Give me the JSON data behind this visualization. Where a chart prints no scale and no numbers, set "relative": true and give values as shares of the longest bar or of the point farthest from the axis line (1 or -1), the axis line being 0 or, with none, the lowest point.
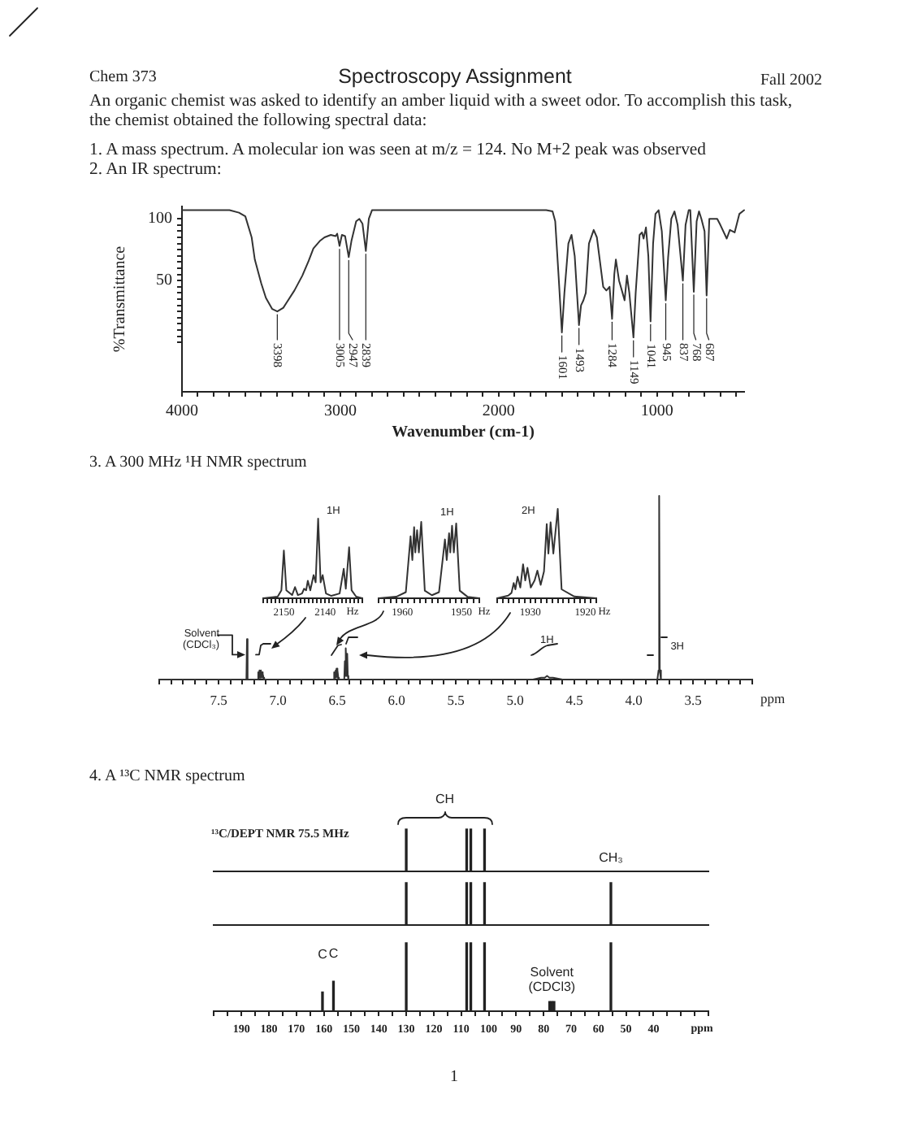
{
  "chart_data": [
    {
      "type": "line",
      "title": "Spectroscopy Assignment",
      "annotations": [
        "Chem 373",
        "Fall 2002",
        "An organic chemist was asked to identify an amber liquid with a sweet odor. To accomplish this task, the chemist obtained the following spectral data:",
        "1. A mass spectrum. A molecular ion was seen at m/z = 124. No M+2 peak was observed",
        "2. An IR spectrum:",
        {
          "text": "3398",
          "x": 3398,
          "y": 25
        },
        {
          "text": "3005",
          "x": 3005,
          "y": 78
        },
        {
          "text": "2947",
          "x": 2947,
          "y": 69
        },
        {
          "text": "2839",
          "x": 2839,
          "y": 74
        },
        {
          "text": "1601",
          "x": 1601,
          "y": 8
        },
        {
          "text": "1493",
          "x": 1493,
          "y": 14
        },
        {
          "text": "1284",
          "x": 1284,
          "y": 19
        },
        {
          "text": "1149",
          "x": 1149,
          "y": 4
        },
        {
          "text": "1041",
          "x": 1041,
          "y": 17
        },
        {
          "text": "945",
          "x": 945,
          "y": 34
        },
        {
          "text": "837",
          "x": 837,
          "y": 50
        },
        {
          "text": "768",
          "x": 768,
          "y": 41
        },
        {
          "text": "687",
          "x": 687,
          "y": 38
        }
      ],
      "xlabel": "Wavenumber (cm-1)",
      "ylabel": "%Transmittance",
      "xlim": [
        4000,
        450
      ],
      "xticks": [
        4000,
        3000,
        2000,
        1000,
        {
          "value": 3900,
          "label": null
        },
        {
          "value": 3800,
          "label": null
        },
        {
          "value": 3700,
          "label": null
        },
        {
          "value": 3600,
          "label": null
        },
        {
          "value": 3500,
          "label": null
        },
        {
          "value": 3400,
          "label": null
        },
        {
          "value": 3300,
          "label": null
        },
        {
          "value": 3200,
          "label": null
        },
        {
          "value": 3100,
          "label": null
        },
        {
          "value": 2900,
          "label": null
        },
        {
          "value": 2800,
          "label": null
        },
        {
          "value": 2700,
          "label": null
        },
        {
          "value": 2600,
          "label": null
        },
        {
          "value": 2500,
          "label": null
        },
        {
          "value": 2400,
          "label": null
        },
        {
          "value": 2300,
          "label": null
        },
        {
          "value": 2200,
          "label": null
        },
        {
          "value": 2100,
          "label": null
        },
        {
          "value": 1900,
          "label": null
        },
        {
          "value": 1800,
          "label": null
        },
        {
          "value": 1700,
          "label": null
        },
        {
          "value": 1600,
          "label": null
        },
        {
          "value": 1500,
          "label": null
        },
        {
          "value": 1400,
          "label": null
        },
        {
          "value": 1300,
          "label": null
        },
        {
          "value": 1200,
          "label": null
        },
        {
          "value": 1100,
          "label": null
        },
        {
          "value": 900,
          "label": null
        },
        {
          "value": 800,
          "label": null
        },
        {
          "value": 700,
          "label": null
        },
        {
          "value": 600,
          "label": null
        },
        {
          "value": 500,
          "label": null
        }
      ],
      "ylim": [
        -40,
        110
      ],
      "yticks": [
        100,
        50,
        {
          "value": 0,
          "label": null
        },
        {
          "value": 5,
          "label": null
        },
        {
          "value": 10,
          "label": null
        },
        {
          "value": 15,
          "label": null
        },
        {
          "value": 20,
          "label": null
        },
        {
          "value": 25,
          "label": null
        },
        {
          "value": 30,
          "label": null
        },
        {
          "value": 35,
          "label": null
        },
        {
          "value": 40,
          "label": null
        },
        {
          "value": 45,
          "label": null
        },
        {
          "value": 55,
          "label": null
        },
        {
          "value": 60,
          "label": null
        },
        {
          "value": 65,
          "label": null
        },
        {
          "value": 70,
          "label": null
        },
        {
          "value": 75,
          "label": null
        },
        {
          "value": 80,
          "label": null
        },
        {
          "value": 85,
          "label": null
        },
        {
          "value": 90,
          "label": null
        },
        {
          "value": 95,
          "label": null
        }
      ],
      "x": [
        4000,
        3700,
        3640,
        3600,
        3560,
        3540,
        3500,
        3470,
        3430,
        3398,
        3360,
        3340,
        3290,
        3240,
        3200,
        3170,
        3130,
        3100,
        3060,
        3030,
        3020,
        3005,
        2990,
        2970,
        2947,
        2930,
        2900,
        2880,
        2860,
        2839,
        2820,
        2800,
        1700,
        1660,
        1643,
        1620,
        1601,
        1585,
        1560,
        1540,
        1520,
        1493,
        1480,
        1465,
        1450,
        1430,
        1400,
        1380,
        1350,
        1340,
        1320,
        1300,
        1284,
        1270,
        1260,
        1240,
        1220,
        1205,
        1190,
        1175,
        1149,
        1135,
        1110,
        1095,
        1085,
        1070,
        1055,
        1041,
        1025,
        1010,
        990,
        970,
        945,
        930,
        910,
        890,
        870,
        837,
        820,
        800,
        790,
        768,
        750,
        735,
        720,
        700,
        687,
        670,
        620,
        600,
        560,
        540,
        510,
        480,
        450
      ],
      "values": [
        107,
        107,
        105,
        102,
        85,
        67,
        48,
        36,
        27,
        25,
        28,
        32,
        42,
        54,
        66,
        76,
        82,
        85,
        87,
        86,
        88,
        78,
        87,
        86,
        69,
        82,
        98,
        100,
        96,
        74,
        100,
        107,
        107,
        106,
        98,
        50,
        8,
        40,
        80,
        87,
        70,
        14,
        30,
        34,
        40,
        80,
        91,
        85,
        55,
        45,
        42,
        45,
        19,
        55,
        67,
        50,
        41,
        34,
        54,
        40,
        4,
        40,
        87,
        89,
        84,
        93,
        70,
        17,
        80,
        104,
        107,
        90,
        34,
        69,
        100,
        106,
        95,
        50,
        95,
        107,
        107,
        41,
        98,
        106,
        100,
        90,
        38,
        100,
        100,
        95,
        84,
        91,
        89,
        104,
        107
      ],
      "color": "#333333"
    },
    {
      "type": "line",
      "title": "3. A 300 MHz ¹H NMR spectrum",
      "xlabel": "ppm",
      "relative": true,
      "xlim": [
        8.0,
        3.0
      ],
      "xticks": [
        7.5,
        {
          "value": 7,
          "label": "7.0"
        },
        6.5,
        {
          "value": 6,
          "label": "6.0"
        },
        5.5,
        {
          "value": 5,
          "label": "5.0"
        },
        4.5,
        {
          "value": 4,
          "label": "4.0"
        },
        3.5,
        {
          "value": 8.0,
          "label": null
        },
        {
          "value": 7.9,
          "label": null
        },
        {
          "value": 7.8,
          "label": null
        },
        {
          "value": 7.7,
          "label": null
        },
        {
          "value": 7.6,
          "label": null
        },
        {
          "value": 7.4,
          "label": null
        },
        {
          "value": 7.3,
          "label": null
        },
        {
          "value": 7.2,
          "label": null
        },
        {
          "value": 7.1,
          "label": null
        },
        {
          "value": 6.9,
          "label": null
        },
        {
          "value": 6.8,
          "label": null
        },
        {
          "value": 6.7,
          "label": null
        },
        {
          "value": 6.6,
          "label": null
        },
        {
          "value": 6.4,
          "label": null
        },
        {
          "value": 6.3,
          "label": null
        },
        {
          "value": 6.2,
          "label": null
        },
        {
          "value": 6.1,
          "label": null
        },
        {
          "value": 5.9,
          "label": null
        },
        {
          "value": 5.8,
          "label": null
        },
        {
          "value": 5.7,
          "label": null
        },
        {
          "value": 5.6,
          "label": null
        },
        {
          "value": 5.4,
          "label": null
        },
        {
          "value": 5.3,
          "label": null
        },
        {
          "value": 5.2,
          "label": null
        },
        {
          "value": 5.1,
          "label": null
        },
        {
          "value": 4.9,
          "label": null
        },
        {
          "value": 4.8,
          "label": null
        },
        {
          "value": 4.7,
          "label": null
        },
        {
          "value": 4.6,
          "label": null
        },
        {
          "value": 4.4,
          "label": null
        },
        {
          "value": 4.3,
          "label": null
        },
        {
          "value": 4.2,
          "label": null
        },
        {
          "value": 4.1,
          "label": null
        },
        {
          "value": 3.9,
          "label": null
        },
        {
          "value": 3.8,
          "label": null
        },
        {
          "value": 3.7,
          "label": null
        },
        {
          "value": 3.6,
          "label": null
        },
        {
          "value": 3.4,
          "label": null
        },
        {
          "value": 3.3,
          "label": null
        },
        {
          "value": 3.2,
          "label": null
        },
        {
          "value": 3.1,
          "label": null
        },
        {
          "value": 3.0,
          "label": null
        }
      ],
      "x": [
        8.0,
        7.3,
        7.265,
        7.26,
        7.255,
        7.17,
        7.165,
        7.16,
        7.155,
        7.15,
        7.145,
        7.14,
        7.135,
        7.13,
        7.125,
        7.12,
        7.115,
        6.53,
        6.525,
        6.52,
        6.515,
        6.51,
        6.505,
        6.5,
        6.495,
        6.49,
        6.485,
        6.44,
        6.435,
        6.43,
        6.425,
        6.42,
        6.415,
        6.41,
        6.405,
        4.85,
        4.78,
        4.75,
        4.73,
        4.71,
        4.68,
        4.6,
        3.8,
        3.79,
        3.785,
        3.78,
        3.77,
        3.0
      ],
      "values": [
        0,
        0,
        0,
        0.22,
        0,
        0,
        0.04,
        0.01,
        0.05,
        0.01,
        0.05,
        0.01,
        0.04,
        0.01,
        0.03,
        0.01,
        0,
        0,
        0.04,
        0.01,
        0.05,
        0.01,
        0.06,
        0.01,
        0.05,
        0.01,
        0,
        0,
        0.1,
        0.02,
        0.17,
        0.02,
        0.14,
        0.02,
        0,
        0,
        0.01,
        0.01,
        0.02,
        0.01,
        0.01,
        0,
        0,
        0.05,
        1,
        0.05,
        0,
        0
      ],
      "color": "#333333",
      "annotations": [
        {
          "text": "Solvent (CDCl₃)",
          "x": 7.26,
          "y": 0.22
        },
        {
          "text": "1H",
          "x": 4.73,
          "y": 0.02
        },
        {
          "text": "3H",
          "x": 3.785,
          "y": 0.18
        }
      ]
    },
    {
      "type": "line",
      "xlabel": "Hz",
      "relative": true,
      "xlim": [
        2155,
        2131
      ],
      "xticks": [
        2150,
        2140,
        {
          "value": 2155,
          "label": null
        },
        {
          "value": 2154,
          "label": null
        },
        {
          "value": 2153,
          "label": null
        },
        {
          "value": 2152,
          "label": null
        },
        {
          "value": 2151,
          "label": null
        },
        {
          "value": 2149,
          "label": null
        },
        {
          "value": 2148,
          "label": null
        },
        {
          "value": 2147,
          "label": null
        },
        {
          "value": 2146,
          "label": null
        },
        {
          "value": 2145,
          "label": null
        },
        {
          "value": 2144,
          "label": null
        },
        {
          "value": 2143,
          "label": null
        },
        {
          "value": 2142,
          "label": null
        },
        {
          "value": 2141,
          "label": null
        },
        {
          "value": 2139,
          "label": null
        },
        {
          "value": 2138,
          "label": null
        },
        {
          "value": 2137,
          "label": null
        },
        {
          "value": 2136,
          "label": null
        },
        {
          "value": 2135,
          "label": null
        },
        {
          "value": 2134,
          "label": null
        },
        {
          "value": 2133,
          "label": null
        },
        {
          "value": 2132,
          "label": null
        },
        {
          "value": 2131,
          "label": null
        }
      ],
      "x": [
        2155,
        2151.5,
        2150.6,
        2150.0,
        2149.4,
        2148,
        2147.3,
        2146.6,
        2145.6,
        2145.1,
        2144.6,
        2144.2,
        2143.6,
        2142.8,
        2142.3,
        2141.7,
        2141.1,
        2140.6,
        2139.8,
        2138.5,
        2136.5,
        2135.5,
        2135.0,
        2134.2,
        2133.6,
        2132.5,
        2131
      ],
      "values": [
        0,
        0.02,
        0.1,
        0.6,
        0.1,
        0.04,
        0.14,
        0.04,
        0.06,
        0.12,
        0.1,
        0.22,
        0.1,
        0.29,
        0.2,
        1,
        0.2,
        0.29,
        0.06,
        0.03,
        0.06,
        0.37,
        0.12,
        0.64,
        0.1,
        0.02,
        0
      ],
      "color": "#333333",
      "annotations": [
        "1H"
      ]
    },
    {
      "type": "line",
      "xlabel": "Hz",
      "relative": true,
      "xlim": [
        1964,
        1947
      ],
      "xticks": [
        1960,
        1950,
        {
          "value": 1964,
          "label": null
        },
        {
          "value": 1963,
          "label": null
        },
        {
          "value": 1962,
          "label": null
        },
        {
          "value": 1961,
          "label": null
        },
        {
          "value": 1959,
          "label": null
        },
        {
          "value": 1958,
          "label": null
        },
        {
          "value": 1957,
          "label": null
        },
        {
          "value": 1956,
          "label": null
        },
        {
          "value": 1955,
          "label": null
        },
        {
          "value": 1954,
          "label": null
        },
        {
          "value": 1953,
          "label": null
        },
        {
          "value": 1952,
          "label": null
        },
        {
          "value": 1951,
          "label": null
        },
        {
          "value": 1949,
          "label": null
        },
        {
          "value": 1948,
          "label": null
        },
        {
          "value": 1947,
          "label": null
        }
      ],
      "x": [
        1964,
        1961,
        1959.4,
        1958.6,
        1958.3,
        1958.0,
        1957.8,
        1957.5,
        1957.2,
        1956.8,
        1956.2,
        1955,
        1953.8,
        1952.8,
        1952.5,
        1952.1,
        1951.9,
        1951.6,
        1951.3,
        1950.9,
        1950.3,
        1949,
        1947
      ],
      "values": [
        0,
        0.02,
        0.08,
        0.81,
        0.5,
        0.93,
        0.6,
        0.89,
        0.6,
        1,
        0.1,
        0.04,
        0.08,
        0.77,
        0.5,
        0.85,
        0.6,
        0.95,
        0.6,
        0.98,
        0.1,
        0.02,
        0
      ],
      "color": "#333333",
      "annotations": [
        "1H"
      ]
    },
    {
      "type": "line",
      "xlabel": "Hz",
      "relative": true,
      "xlim": [
        1936,
        1918
      ],
      "xticks": [
        1930,
        1920,
        {
          "value": 1936,
          "label": null
        },
        {
          "value": 1935,
          "label": null
        },
        {
          "value": 1934,
          "label": null
        },
        {
          "value": 1933,
          "label": null
        },
        {
          "value": 1932,
          "label": null
        },
        {
          "value": 1931,
          "label": null
        },
        {
          "value": 1929,
          "label": null
        },
        {
          "value": 1928,
          "label": null
        },
        {
          "value": 1927,
          "label": null
        },
        {
          "value": 1926,
          "label": null
        },
        {
          "value": 1925,
          "label": null
        },
        {
          "value": 1924,
          "label": null
        },
        {
          "value": 1923,
          "label": null
        },
        {
          "value": 1922,
          "label": null
        },
        {
          "value": 1921,
          "label": null
        },
        {
          "value": 1919,
          "label": null
        },
        {
          "value": 1918,
          "label": null
        }
      ],
      "x": [
        1936,
        1934,
        1933.4,
        1933.0,
        1932.7,
        1932.3,
        1931.8,
        1931.3,
        1930.9,
        1930.5,
        1929.9,
        1929.2,
        1928.7,
        1928.1,
        1927.5,
        1927.0,
        1926.7,
        1926.3,
        1925.8,
        1925.0,
        1924.3,
        1922,
        1918
      ],
      "values": [
        0,
        0.03,
        0.06,
        0.17,
        0.1,
        0.24,
        0.12,
        0.38,
        0.2,
        0.34,
        0.12,
        0.2,
        0.31,
        0.15,
        0.3,
        0.83,
        0.5,
        0.85,
        0.5,
        1,
        0.1,
        0.02,
        0
      ],
      "color": "#333333",
      "annotations": [
        "2H"
      ]
    },
    {
      "type": "bar",
      "title": "4. A ¹³C NMR spectrum",
      "relative": true,
      "xlim": [
        200,
        20
      ],
      "tick_labels": false,
      "x": [
        130,
        108,
        106.5,
        101.5
      ],
      "values": [
        1,
        1,
        1,
        1
      ],
      "color": "#222222",
      "annotations": [
        "¹³C/DEPT NMR 75.5 MHz",
        "CH"
      ]
    },
    {
      "type": "bar",
      "relative": true,
      "xlim": [
        200,
        20
      ],
      "tick_labels": false,
      "x": [
        130,
        108,
        106.5,
        101.5,
        55.5
      ],
      "values": [
        1,
        1,
        1,
        1,
        1
      ],
      "color": "#222222",
      "annotations": [
        {
          "text": "CH₃",
          "x": 55.5,
          "y": 1
        }
      ]
    },
    {
      "type": "bar",
      "relative": true,
      "xlabel": "ppm",
      "xlim": [
        200,
        20
      ],
      "xticks": [
        190,
        180,
        170,
        160,
        150,
        140,
        130,
        120,
        110,
        100,
        90,
        80,
        70,
        60,
        50,
        40,
        {
          "value": 200,
          "label": null
        },
        {
          "value": 195,
          "label": null
        },
        {
          "value": 185,
          "label": null
        },
        {
          "value": 175,
          "label": null
        },
        {
          "value": 165,
          "label": null
        },
        {
          "value": 155,
          "label": null
        },
        {
          "value": 145,
          "label": null
        },
        {
          "value": 135,
          "label": null
        },
        {
          "value": 125,
          "label": null
        },
        {
          "value": 115,
          "label": null
        },
        {
          "value": 105,
          "label": null
        },
        {
          "value": 95,
          "label": null
        },
        {
          "value": 85,
          "label": null
        },
        {
          "value": 75,
          "label": null
        },
        {
          "value": 65,
          "label": null
        },
        {
          "value": 55,
          "label": null
        },
        {
          "value": 45,
          "label": null
        },
        {
          "value": 35,
          "label": null
        },
        {
          "value": 30,
          "label": null
        },
        {
          "value": 25,
          "label": null
        },
        {
          "value": 20,
          "label": null
        }
      ],
      "x": [
        160.5,
        156.5,
        130,
        108,
        106.5,
        101.5,
        77.8,
        77,
        76.2,
        55.5
      ],
      "values": [
        0.28,
        0.44,
        1,
        1,
        1,
        1,
        0.14,
        0.14,
        0.14,
        1
      ],
      "color": "#222222",
      "annotations": [
        {
          "text": "C",
          "x": 160.5,
          "y": 0.28
        },
        {
          "text": "C",
          "x": 156.5,
          "y": 0.44
        },
        {
          "text": "Solvent (CDCl3)",
          "x": 77,
          "y": 0.14
        },
        "1"
      ]
    }
  ]
}
